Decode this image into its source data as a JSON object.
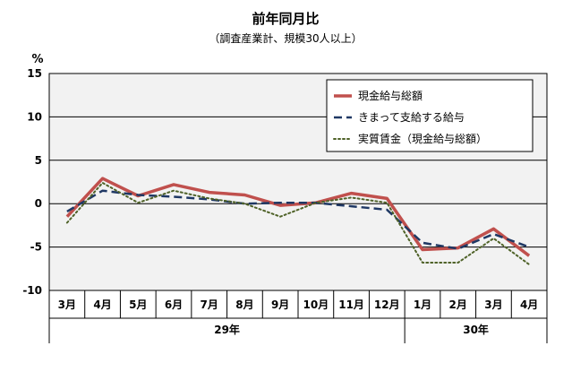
{
  "chart_data": {
    "type": "line",
    "title": "前年同月比",
    "subtitle": "（調査産業計、規模30人以上）",
    "yunit": "%",
    "ylim": [
      -10,
      15
    ],
    "yticks": [
      -10,
      -5,
      0,
      5,
      10,
      15
    ],
    "categories": [
      "3月",
      "4月",
      "5月",
      "6月",
      "7月",
      "8月",
      "9月",
      "10月",
      "11月",
      "12月",
      "1月",
      "2月",
      "3月",
      "4月"
    ],
    "years": [
      {
        "label": "29年",
        "from": 0,
        "to": 9
      },
      {
        "label": "30年",
        "from": 10,
        "to": 13
      }
    ],
    "grid": true,
    "legend_position": "top-right",
    "series": [
      {
        "name": "現金給与総額",
        "color": "#c0504d",
        "style": "solid",
        "values": [
          -1.5,
          2.9,
          0.9,
          2.2,
          1.3,
          1.0,
          -0.2,
          0.1,
          1.2,
          0.6,
          -5.3,
          -5.1,
          -2.9,
          -6.0
        ]
      },
      {
        "name": "きまって支給する給与",
        "color": "#1f3864",
        "style": "dashed",
        "values": [
          -0.9,
          1.5,
          1.0,
          0.8,
          0.5,
          0.0,
          0.1,
          0.1,
          -0.3,
          -0.7,
          -4.5,
          -5.2,
          -3.5,
          -5.0
        ]
      },
      {
        "name": "実質賃金（現金給与総額）",
        "color": "#4f6228",
        "style": "dotted",
        "values": [
          -2.2,
          2.4,
          0.1,
          1.5,
          0.6,
          0.0,
          -1.5,
          0.1,
          0.7,
          0.1,
          -6.8,
          -6.8,
          -4.0,
          -7.0
        ]
      }
    ]
  }
}
